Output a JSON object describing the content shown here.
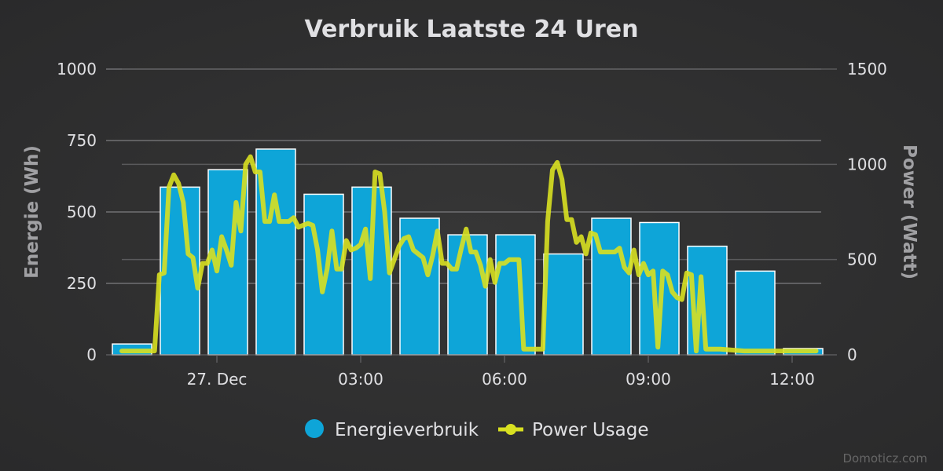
{
  "chart_data": {
    "type": "bar",
    "title": "Verbruik Laatste 24 Uren",
    "credits": "Domoticz.com",
    "y_left": {
      "label": "Energie (Wh)",
      "range": [
        0,
        1000
      ],
      "ticks": [
        "0",
        "250",
        "500",
        "750",
        "1000"
      ],
      "tick_values": [
        0,
        250,
        500,
        750,
        1000
      ]
    },
    "y_right": {
      "label": "Power (Watt)",
      "range": [
        0,
        1500
      ],
      "ticks": [
        "0",
        "500",
        "1000",
        "1500"
      ],
      "tick_values": [
        0,
        500,
        1000,
        1500
      ]
    },
    "x_ticks": [
      {
        "label": "27. Dec",
        "hour": 1
      },
      {
        "label": "03:00",
        "hour": 4
      },
      {
        "label": "06:00",
        "hour": 7
      },
      {
        "label": "09:00",
        "hour": 10
      },
      {
        "label": "12:00",
        "hour": 13
      }
    ],
    "x_range_hours": [
      -1.3,
      13.5
    ],
    "grid": true,
    "legend_position": "bottom-center",
    "series": [
      {
        "name": "Energieverbruik",
        "type": "bar",
        "axis": "left",
        "color": "#0ea5d8",
        "x_hours": [
          -1,
          0,
          1,
          2,
          3,
          4,
          5,
          6,
          7,
          8,
          9,
          10,
          11,
          12,
          13
        ],
        "values": [
          38,
          587,
          648,
          720,
          562,
          587,
          478,
          420,
          420,
          353,
          478,
          463,
          380,
          293,
          22
        ]
      },
      {
        "name": "Power Usage",
        "type": "line",
        "axis": "right",
        "color": "#d8e021",
        "points": [
          [
            -1.3,
            20
          ],
          [
            -0.5,
            20
          ],
          [
            -0.3,
            20
          ],
          [
            -0.2,
            420
          ],
          [
            -0.1,
            430
          ],
          [
            0,
            880
          ],
          [
            0.1,
            945
          ],
          [
            0.2,
            900
          ],
          [
            0.3,
            800
          ],
          [
            0.4,
            530
          ],
          [
            0.5,
            510
          ],
          [
            0.6,
            350
          ],
          [
            0.7,
            480
          ],
          [
            0.8,
            480
          ],
          [
            0.9,
            550
          ],
          [
            1.0,
            440
          ],
          [
            1.1,
            620
          ],
          [
            1.2,
            550
          ],
          [
            1.3,
            470
          ],
          [
            1.4,
            800
          ],
          [
            1.5,
            650
          ],
          [
            1.6,
            1000
          ],
          [
            1.7,
            1040
          ],
          [
            1.8,
            960
          ],
          [
            1.9,
            960
          ],
          [
            2.0,
            700
          ],
          [
            2.1,
            700
          ],
          [
            2.2,
            840
          ],
          [
            2.3,
            700
          ],
          [
            2.5,
            700
          ],
          [
            2.6,
            720
          ],
          [
            2.7,
            670
          ],
          [
            2.9,
            690
          ],
          [
            3.0,
            680
          ],
          [
            3.1,
            550
          ],
          [
            3.2,
            330
          ],
          [
            3.3,
            450
          ],
          [
            3.4,
            650
          ],
          [
            3.5,
            450
          ],
          [
            3.6,
            450
          ],
          [
            3.7,
            600
          ],
          [
            3.8,
            550
          ],
          [
            3.9,
            560
          ],
          [
            4.0,
            580
          ],
          [
            4.1,
            660
          ],
          [
            4.2,
            400
          ],
          [
            4.3,
            960
          ],
          [
            4.4,
            950
          ],
          [
            4.5,
            750
          ],
          [
            4.6,
            430
          ],
          [
            4.7,
            500
          ],
          [
            4.8,
            570
          ],
          [
            4.9,
            610
          ],
          [
            5.0,
            620
          ],
          [
            5.1,
            550
          ],
          [
            5.2,
            530
          ],
          [
            5.3,
            510
          ],
          [
            5.4,
            420
          ],
          [
            5.5,
            520
          ],
          [
            5.6,
            650
          ],
          [
            5.7,
            480
          ],
          [
            5.8,
            480
          ],
          [
            5.9,
            450
          ],
          [
            6.0,
            450
          ],
          [
            6.1,
            560
          ],
          [
            6.2,
            660
          ],
          [
            6.3,
            540
          ],
          [
            6.4,
            540
          ],
          [
            6.5,
            470
          ],
          [
            6.6,
            360
          ],
          [
            6.7,
            500
          ],
          [
            6.8,
            380
          ],
          [
            6.9,
            480
          ],
          [
            7.0,
            480
          ],
          [
            7.1,
            500
          ],
          [
            7.3,
            500
          ],
          [
            7.4,
            30
          ],
          [
            7.5,
            30
          ],
          [
            7.6,
            30
          ],
          [
            7.8,
            30
          ],
          [
            7.9,
            700
          ],
          [
            8.0,
            970
          ],
          [
            8.1,
            1010
          ],
          [
            8.2,
            920
          ],
          [
            8.3,
            710
          ],
          [
            8.4,
            710
          ],
          [
            8.5,
            590
          ],
          [
            8.6,
            620
          ],
          [
            8.7,
            530
          ],
          [
            8.8,
            640
          ],
          [
            8.9,
            630
          ],
          [
            9.0,
            540
          ],
          [
            9.3,
            540
          ],
          [
            9.4,
            560
          ],
          [
            9.5,
            460
          ],
          [
            9.6,
            430
          ],
          [
            9.7,
            550
          ],
          [
            9.8,
            420
          ],
          [
            9.9,
            480
          ],
          [
            10.0,
            420
          ],
          [
            10.1,
            440
          ],
          [
            10.2,
            40
          ],
          [
            10.3,
            440
          ],
          [
            10.4,
            420
          ],
          [
            10.5,
            330
          ],
          [
            10.6,
            300
          ],
          [
            10.7,
            290
          ],
          [
            10.8,
            430
          ],
          [
            10.9,
            420
          ],
          [
            11.0,
            20
          ],
          [
            11.1,
            410
          ],
          [
            11.2,
            30
          ],
          [
            11.3,
            30
          ],
          [
            11.5,
            30
          ],
          [
            12.0,
            20
          ],
          [
            12.5,
            20
          ],
          [
            13.5,
            20
          ]
        ]
      }
    ]
  }
}
